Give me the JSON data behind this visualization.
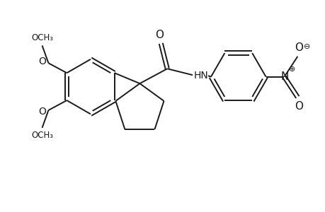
{
  "background_color": "#ffffff",
  "line_color": "#1a1a1a",
  "line_width": 1.4,
  "font_size": 9.5,
  "fig_width": 4.6,
  "fig_height": 3.0,
  "dpi": 100,
  "xlim": [
    0,
    9.2
  ],
  "ylim": [
    0,
    6.0
  ]
}
